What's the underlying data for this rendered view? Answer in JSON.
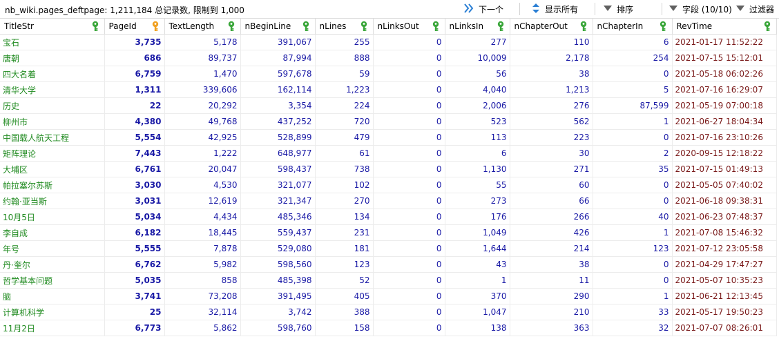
{
  "toolbar": {
    "info": "nb_wiki.pages_deftpage: 1,211,184 总记录数, 限制到 1,000",
    "next_label": "下一个",
    "show_all_label": "显示所有",
    "sort_label": "排序",
    "fields_label": "字段 (10/10)",
    "filter_label": "过滤器"
  },
  "columns": [
    {
      "label": "TitleStr",
      "key": "green"
    },
    {
      "label": "PageId",
      "key": "orange"
    },
    {
      "label": "TextLength",
      "key": "green"
    },
    {
      "label": "nBeginLine",
      "key": "green"
    },
    {
      "label": "nLines",
      "key": "green"
    },
    {
      "label": "nLinksOut",
      "key": "green"
    },
    {
      "label": "nLinksIn",
      "key": "green"
    },
    {
      "label": "nChapterOut",
      "key": "green"
    },
    {
      "label": "nChapterIn",
      "key": "green"
    },
    {
      "label": "RevTime",
      "key": "green"
    }
  ],
  "colors": {
    "title": "#1f8a1f",
    "number": "#1a1aa6",
    "time": "#7a1a1a",
    "key_green": "#3aa63a",
    "key_orange": "#f0a020",
    "nav_blue": "#2a7fd4"
  },
  "rows": [
    [
      "宝石",
      "3,735",
      "5,178",
      "391,067",
      "255",
      "0",
      "277",
      "110",
      "6",
      "2021-01-17 11:52:22"
    ],
    [
      "唐朝",
      "686",
      "89,737",
      "87,994",
      "888",
      "0",
      "10,009",
      "2,178",
      "254",
      "2021-07-15 15:12:01"
    ],
    [
      "四大名着",
      "6,759",
      "1,470",
      "597,678",
      "59",
      "0",
      "56",
      "38",
      "0",
      "2021-05-18 06:02:26"
    ],
    [
      "清华大学",
      "1,311",
      "339,606",
      "162,114",
      "1,223",
      "0",
      "4,040",
      "1,213",
      "5",
      "2021-07-16 16:29:07"
    ],
    [
      "历史",
      "22",
      "20,292",
      "3,354",
      "224",
      "0",
      "2,006",
      "276",
      "87,599",
      "2021-05-19 07:00:18"
    ],
    [
      "柳州市",
      "4,380",
      "49,768",
      "437,252",
      "720",
      "0",
      "523",
      "562",
      "1",
      "2021-06-27 18:04:34"
    ],
    [
      "中国载人航天工程",
      "5,554",
      "42,925",
      "528,899",
      "479",
      "0",
      "113",
      "223",
      "0",
      "2021-07-16 23:10:26"
    ],
    [
      "矩阵理论",
      "7,443",
      "1,222",
      "648,977",
      "61",
      "0",
      "6",
      "30",
      "2",
      "2020-09-15 12:18:22"
    ],
    [
      "大埔区",
      "6,761",
      "20,047",
      "598,437",
      "738",
      "0",
      "1,130",
      "271",
      "35",
      "2021-07-15 01:49:13"
    ],
    [
      "帕拉塞尔苏斯",
      "3,030",
      "4,530",
      "321,077",
      "102",
      "0",
      "55",
      "60",
      "0",
      "2021-05-05 07:40:02"
    ],
    [
      "约翰·亚当斯",
      "3,031",
      "12,619",
      "321,347",
      "270",
      "0",
      "273",
      "66",
      "0",
      "2021-06-18 09:38:31"
    ],
    [
      "10月5日",
      "5,034",
      "4,434",
      "485,346",
      "134",
      "0",
      "176",
      "266",
      "40",
      "2021-06-23 07:48:37"
    ],
    [
      "李自成",
      "6,182",
      "18,445",
      "559,437",
      "231",
      "0",
      "1,049",
      "426",
      "1",
      "2021-07-08 15:46:32"
    ],
    [
      "年号",
      "5,555",
      "7,878",
      "529,080",
      "181",
      "0",
      "1,644",
      "214",
      "123",
      "2021-07-12 23:05:58"
    ],
    [
      "丹·奎尔",
      "6,762",
      "5,982",
      "598,560",
      "123",
      "0",
      "43",
      "38",
      "0",
      "2021-04-29 17:47:27"
    ],
    [
      "哲学基本问题",
      "5,035",
      "858",
      "485,398",
      "52",
      "0",
      "1",
      "11",
      "0",
      "2021-05-07 10:35:23"
    ],
    [
      "脑",
      "3,741",
      "73,208",
      "391,495",
      "405",
      "0",
      "370",
      "290",
      "1",
      "2021-06-21 12:13:45"
    ],
    [
      "计算机科学",
      "25",
      "32,114",
      "3,742",
      "388",
      "0",
      "1,047",
      "210",
      "33",
      "2021-05-17 19:50:23"
    ],
    [
      "11月2日",
      "6,773",
      "5,862",
      "598,760",
      "158",
      "0",
      "138",
      "363",
      "32",
      "2021-07-07 08:26:01"
    ]
  ]
}
